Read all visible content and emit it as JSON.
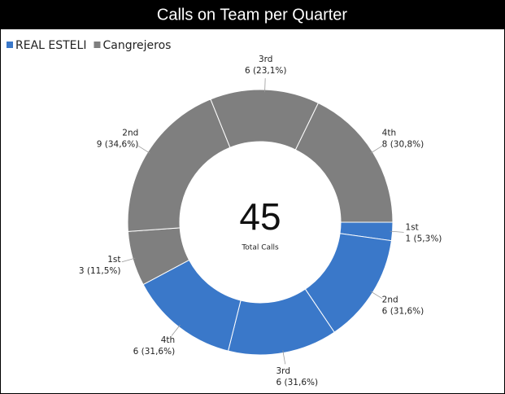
{
  "chart_data": {
    "type": "donut",
    "title": "Calls on Team per Quarter",
    "categories": [
      "1st",
      "2nd",
      "3rd",
      "4th"
    ],
    "series": [
      {
        "name": "REAL ESTELI",
        "color": "#3a78c9",
        "values": [
          1,
          6,
          6,
          6
        ],
        "value_labels": [
          "1 (5,3%)",
          "6 (31,6%)",
          "6 (31,6%)",
          "6 (31,6%)"
        ]
      },
      {
        "name": "Cangrejeros",
        "color": "#7f7f7f",
        "values": [
          3,
          9,
          6,
          8
        ],
        "value_labels": [
          "3 (11,5%)",
          "9 (34,6%)",
          "6 (23,1%)",
          "8 (30,8%)"
        ]
      }
    ],
    "center_value": 45,
    "center_label": "Total Calls",
    "legend": "top-left"
  }
}
